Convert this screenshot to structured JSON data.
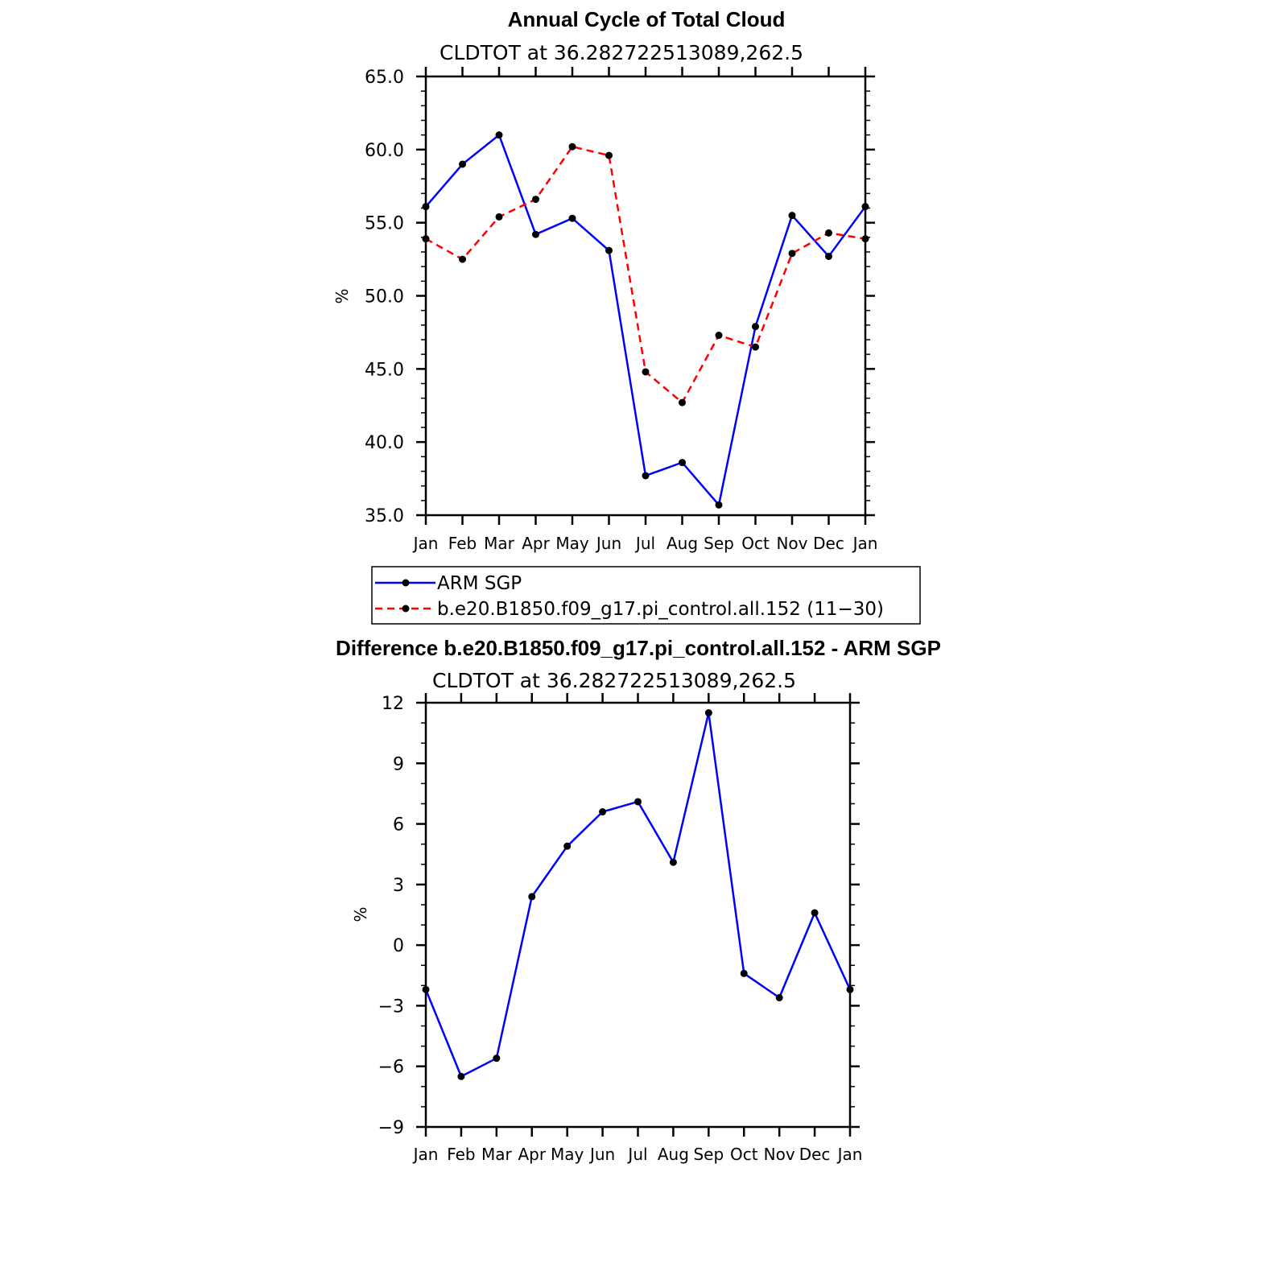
{
  "chart_data": [
    {
      "type": "line",
      "title": "Annual Cycle of Total Cloud",
      "subtitle": "CLDTOT at 36.282722513089,262.5",
      "xlabel": "",
      "ylabel": "%",
      "categories": [
        "Jan",
        "Feb",
        "Mar",
        "Apr",
        "May",
        "Jun",
        "Jul",
        "Aug",
        "Sep",
        "Oct",
        "Nov",
        "Dec",
        "Jan"
      ],
      "ylim": [
        35,
        65
      ],
      "y_ticks": [
        35,
        40,
        45,
        50,
        55,
        60,
        65
      ],
      "y_tick_labels": [
        "35.0",
        "40.0",
        "45.0",
        "50.0",
        "55.0",
        "60.0",
        "65.0"
      ],
      "series": [
        {
          "name": "ARM SGP",
          "color": "#0000ff",
          "dash": "solid",
          "values": [
            56.1,
            59.0,
            61.0,
            54.2,
            55.3,
            53.1,
            37.7,
            38.6,
            35.7,
            47.9,
            55.5,
            52.7,
            56.1
          ]
        },
        {
          "name": "b.e20.B1850.f09_g17.pi_control.all.152 (11-30)",
          "color": "#ff0000",
          "dash": "dashed",
          "values": [
            53.9,
            52.5,
            55.4,
            56.6,
            60.2,
            59.6,
            44.8,
            42.7,
            47.3,
            46.5,
            52.9,
            54.3,
            53.9
          ]
        }
      ],
      "legend": {
        "position": "bottom",
        "entries": [
          "ARM SGP",
          "b.e20.B1850.f09_g17.pi_control.all.152 (11−30)"
        ]
      }
    },
    {
      "type": "line",
      "title": "Difference b.e20.B1850.f09_g17.pi_control.all.152 - ARM SGP",
      "subtitle": "CLDTOT at 36.282722513089,262.5",
      "xlabel": "",
      "ylabel": "%",
      "categories": [
        "Jan",
        "Feb",
        "Mar",
        "Apr",
        "May",
        "Jun",
        "Jul",
        "Aug",
        "Sep",
        "Oct",
        "Nov",
        "Dec",
        "Jan"
      ],
      "ylim": [
        -9,
        12
      ],
      "y_ticks": [
        -9,
        -6,
        -3,
        0,
        3,
        6,
        9,
        12
      ],
      "y_tick_labels": [
        "−9",
        "−6",
        "−3",
        "0",
        "3",
        "6",
        "9",
        "12"
      ],
      "series": [
        {
          "name": "Difference",
          "color": "#0000ff",
          "dash": "solid",
          "values": [
            -2.2,
            -6.5,
            -5.6,
            2.4,
            4.9,
            6.6,
            7.1,
            4.1,
            11.5,
            -1.4,
            -2.6,
            1.6,
            -2.2
          ]
        }
      ]
    }
  ]
}
